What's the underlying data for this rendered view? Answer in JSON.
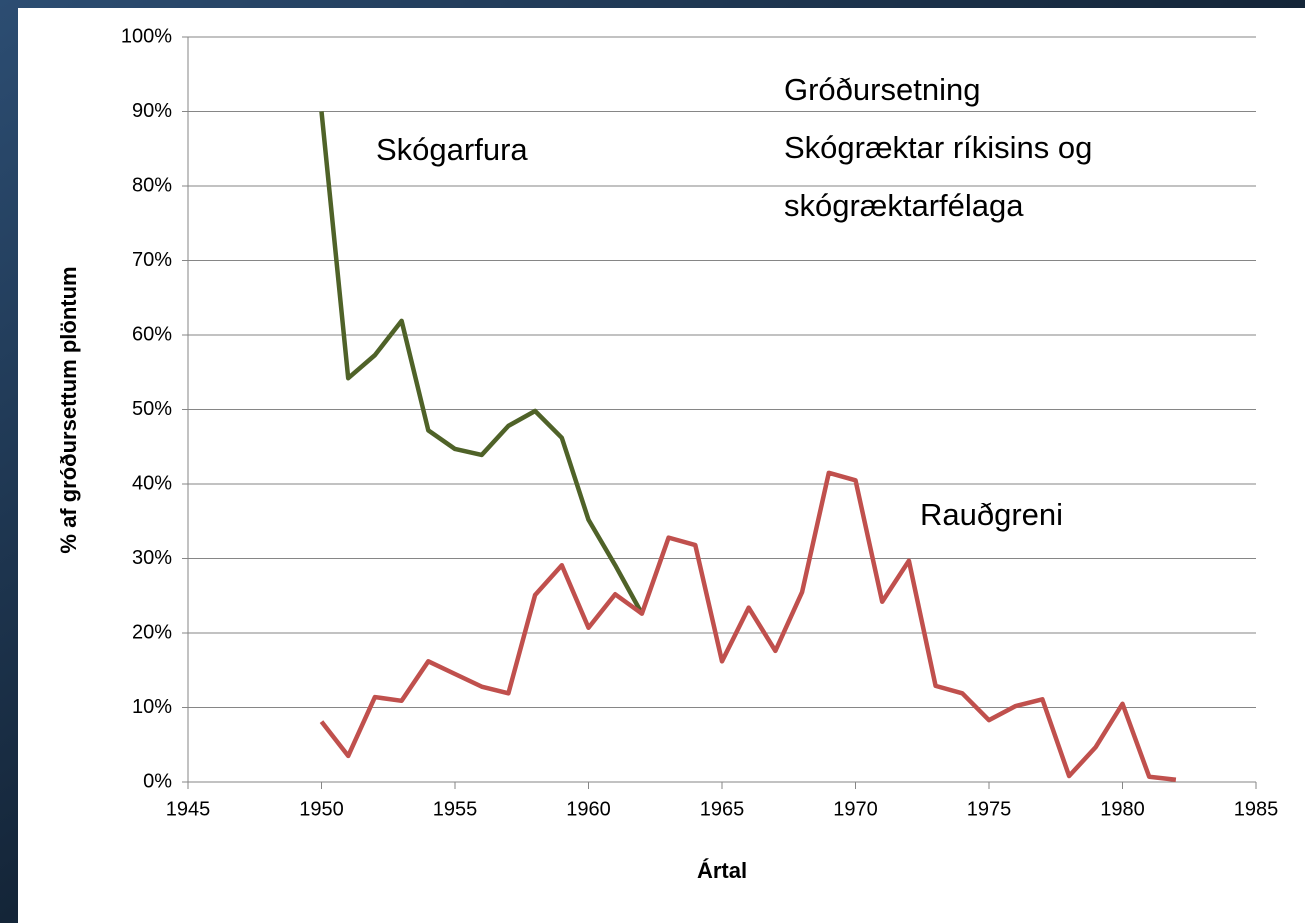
{
  "chart_data": {
    "type": "line",
    "x_label": "Ártal",
    "y_label": "% af gróðursettum plöntum",
    "annotation_lines": [
      "Gróðursetning",
      "Skógræktar ríkisins og",
      "skógræktarfélaga"
    ],
    "x": [
      1950,
      1951,
      1952,
      1953,
      1954,
      1955,
      1956,
      1957,
      1958,
      1959,
      1960,
      1961,
      1962,
      1963,
      1964,
      1965,
      1966,
      1967,
      1968,
      1969,
      1970,
      1971,
      1972,
      1973,
      1974,
      1975,
      1976,
      1977,
      1978,
      1979,
      1980,
      1981,
      1982
    ],
    "series": [
      {
        "name": "Skógarfura",
        "color": "#4f6228",
        "values": [
          90,
          54.2,
          57.3,
          61.9,
          47.2,
          44.7,
          43.9,
          47.8,
          49.8,
          46.2,
          35.2,
          29.1,
          22.6,
          null,
          null,
          null,
          null,
          null,
          null,
          null,
          null,
          null,
          null,
          null,
          null,
          null,
          null,
          null,
          null,
          null,
          null,
          null,
          null
        ]
      },
      {
        "name": "Rauðgreni",
        "color": "#c0504d",
        "values": [
          8.1,
          3.5,
          11.4,
          10.9,
          16.2,
          14.5,
          12.8,
          11.9,
          25.1,
          29.1,
          20.7,
          25.2,
          22.6,
          32.8,
          31.8,
          16.2,
          23.4,
          17.6,
          25.5,
          41.5,
          40.5,
          24.2,
          29.7,
          12.9,
          11.9,
          8.3,
          10.2,
          11.1,
          0.8,
          4.7,
          10.5,
          0.7,
          0.3
        ]
      }
    ],
    "xlim": [
      1945,
      1985
    ],
    "xticks": [
      1945,
      1950,
      1955,
      1960,
      1965,
      1970,
      1975,
      1980,
      1985
    ],
    "ylim": [
      0,
      100
    ],
    "yticks": [
      {
        "value": 0,
        "label": "0%"
      },
      {
        "value": 10,
        "label": "10%"
      },
      {
        "value": 20,
        "label": "20%"
      },
      {
        "value": 30,
        "label": "30%"
      },
      {
        "value": 40,
        "label": "40%"
      },
      {
        "value": 50,
        "label": "50%"
      },
      {
        "value": 60,
        "label": "60%"
      },
      {
        "value": 70,
        "label": "70%"
      },
      {
        "value": 80,
        "label": "80%"
      },
      {
        "value": 90,
        "label": "90%"
      },
      {
        "value": 100,
        "label": "100%"
      }
    ],
    "grid": true
  }
}
